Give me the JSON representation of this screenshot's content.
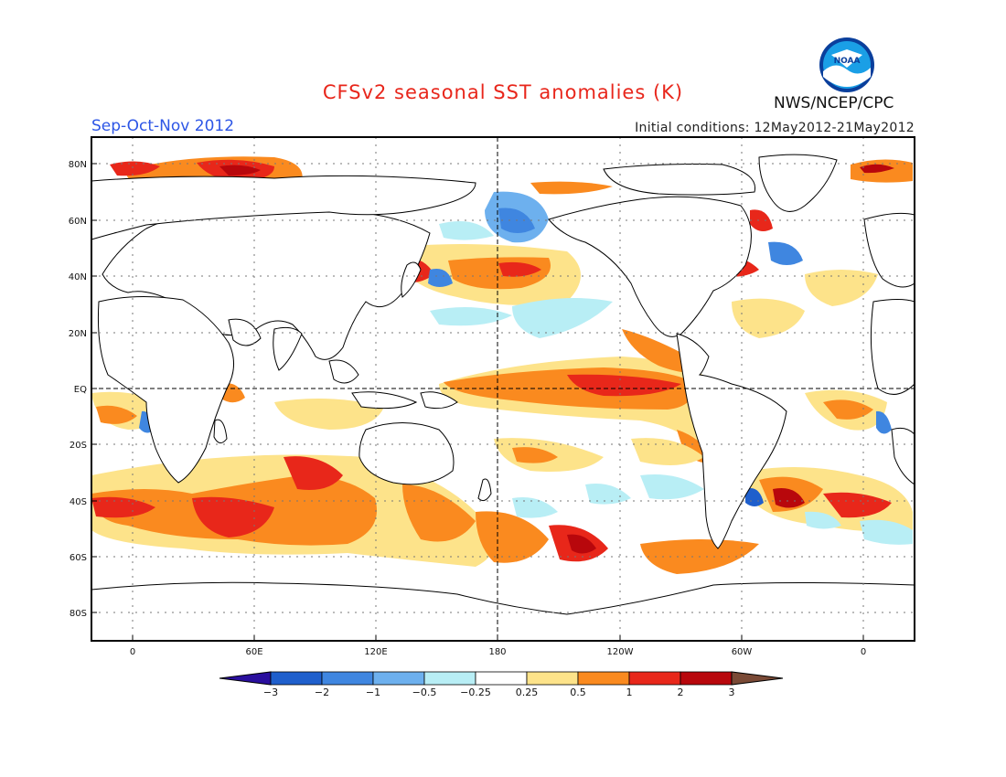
{
  "header": {
    "title": "CFSv2 seasonal SST anomalies (K)",
    "season": "Sep-Oct-Nov 2012",
    "initial_conditions": "Initial conditions: 12May2012-21May2012",
    "agency": "NWS/NCEP/CPC",
    "logo_text": "NOAA"
  },
  "map": {
    "lat_labels": [
      "80N",
      "60N",
      "40N",
      "20N",
      "EQ",
      "20S",
      "40S",
      "60S",
      "80S"
    ],
    "lon_labels": [
      "0",
      "60E",
      "120E",
      "180",
      "120W",
      "60W",
      "0"
    ]
  },
  "colorbar": {
    "labels": [
      "-3",
      "-2",
      "-1",
      "-0.5",
      "-0.25",
      "0.25",
      "0.5",
      "1",
      "2",
      "3"
    ],
    "colors": [
      "#2a0f9e",
      "#1f5fcc",
      "#3f86e0",
      "#6db0ee",
      "#b8eef5",
      "#ffffff",
      "#fde38a",
      "#fa8a1f",
      "#e8271a",
      "#b8070c",
      "#7a4a36"
    ]
  },
  "colors": {
    "title": "#e8261b",
    "season": "#2d56e6"
  }
}
